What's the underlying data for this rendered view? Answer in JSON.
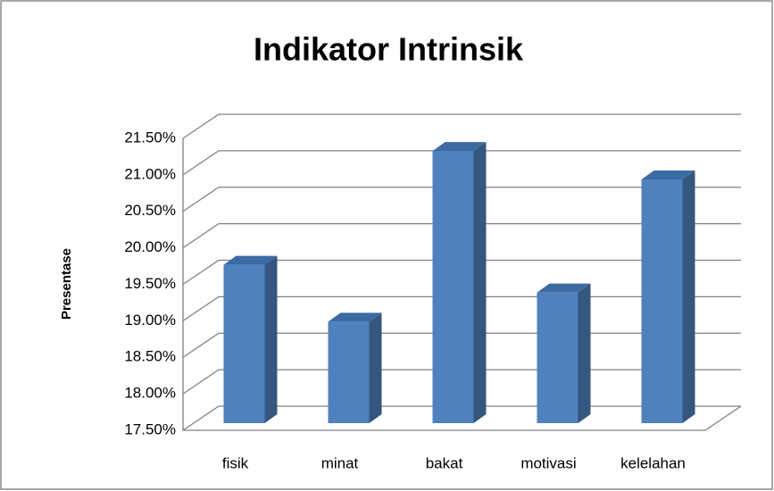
{
  "chart_data": {
    "type": "bar3d",
    "title": "Indikator Intrinsik",
    "y_label": "Presentase",
    "categories": [
      "fisik",
      "minat",
      "bakat",
      "motivasi",
      "kelelahan"
    ],
    "values": [
      19.67,
      18.89,
      21.23,
      19.29,
      20.84
    ],
    "color": "#4f81bd",
    "ylim": [
      17.5,
      21.5
    ],
    "yticks": [
      {
        "value": 17.5,
        "label": "17.50%"
      },
      {
        "value": 18,
        "label": "18.00%"
      },
      {
        "value": 18.5,
        "label": "18.50%"
      },
      {
        "value": 19,
        "label": "19.00%"
      },
      {
        "value": 19.5,
        "label": "19.50%"
      },
      {
        "value": 20,
        "label": "20.00%"
      },
      {
        "value": 20.5,
        "label": "20.50%"
      },
      {
        "value": 21,
        "label": "21.00%"
      },
      {
        "value": 21.5,
        "label": "21.50%"
      }
    ],
    "grid": true
  }
}
